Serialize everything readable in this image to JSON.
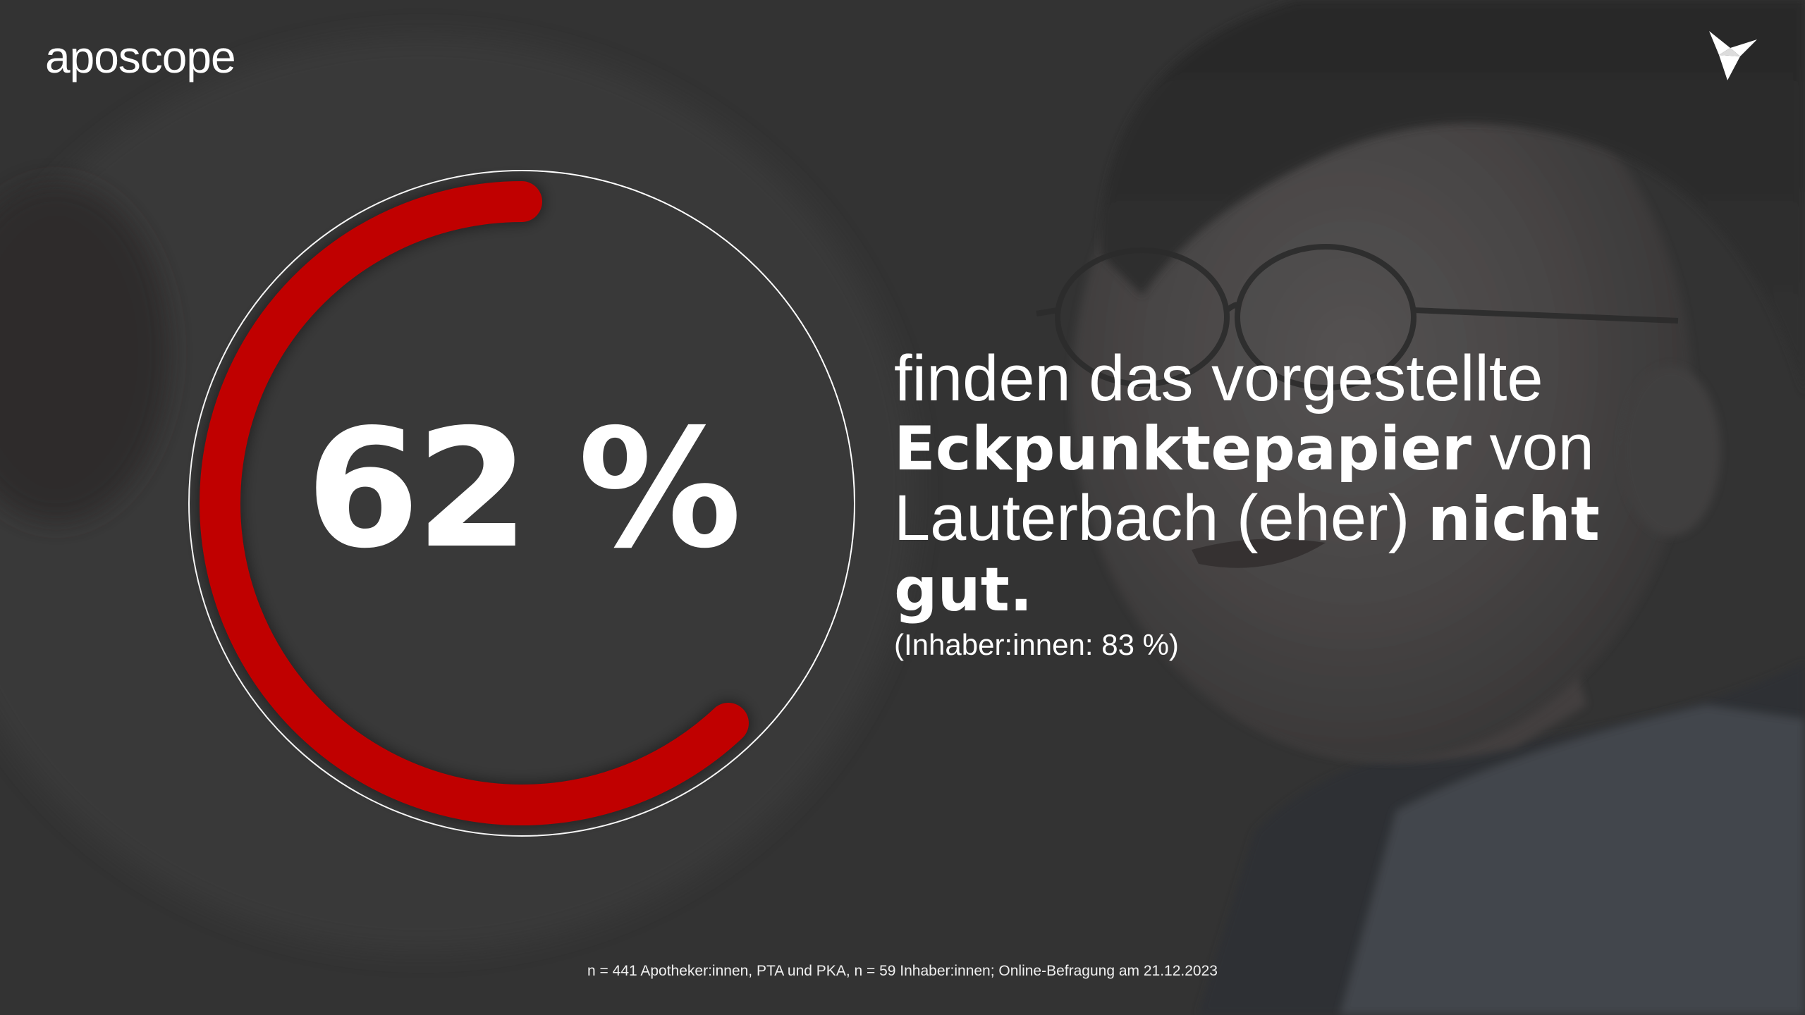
{
  "brand": {
    "logo_text": "aposcope",
    "mark_icon": "origami-bird-icon"
  },
  "stat": {
    "value_text": "62 %",
    "value": 62,
    "arc_color": "#c00000",
    "statement_parts": [
      {
        "text": "finden das vorgestellte ",
        "bold": false
      },
      {
        "text": "Eckpunktepapier",
        "bold": true
      },
      {
        "text": " von Lauterbach (eher) ",
        "bold": false
      },
      {
        "text": "nicht gut.",
        "bold": true
      }
    ],
    "note": "(Inhaber:innen: 83 %)"
  },
  "footnote": "n = 441 Apotheker:innen, PTA und PKA, n = 59 Inhaber:innen; Online-Befragung am 21.12.2023",
  "colors": {
    "background": "#3a3a3a",
    "text": "#ffffff",
    "accent": "#c00000"
  }
}
